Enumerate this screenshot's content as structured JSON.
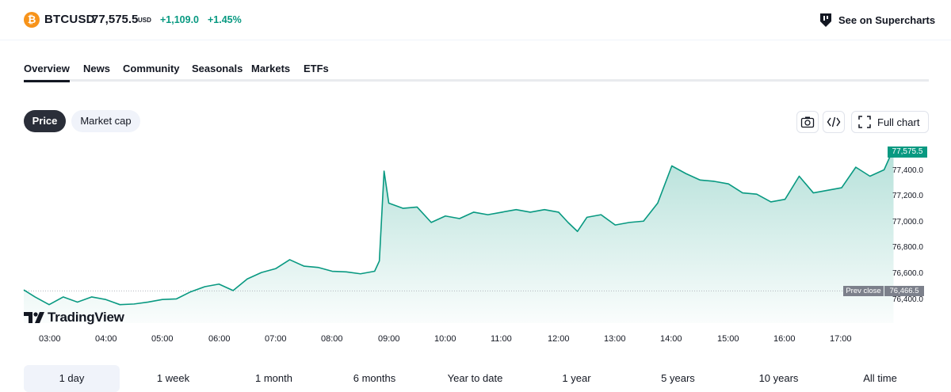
{
  "header": {
    "symbol": "BTCUSD",
    "price": "77,575.5",
    "currency": "USD",
    "change": "+1,109.0",
    "change_percent": "+1.45%",
    "coin_glyph": "₿",
    "supercharts_label": "See on Supercharts",
    "positive_color": "#089981"
  },
  "tabs": [
    "Overview",
    "News",
    "Community",
    "Seasonals",
    "Markets",
    "ETFs"
  ],
  "active_tab": "Overview",
  "chart_toggle": {
    "price_label": "Price",
    "market_cap_label": "Market cap",
    "active": "Price"
  },
  "toolbar": {
    "snapshot_icon": "camera-icon",
    "embed_icon": "code-icon",
    "full_chart_label": "Full chart",
    "full_chart_icon": "expand-icon"
  },
  "branding": {
    "logo_text": "TradingView"
  },
  "chart_data": {
    "type": "area",
    "x_ticks": [
      "03:00",
      "04:00",
      "05:00",
      "06:00",
      "07:00",
      "08:00",
      "09:00",
      "10:00",
      "11:00",
      "12:00",
      "13:00",
      "14:00",
      "15:00",
      "16:00",
      "17:00"
    ],
    "y_ticks": [
      "77,400.0",
      "77,200.0",
      "77,000.0",
      "76,800.0",
      "76,600.0",
      "76,400.0"
    ],
    "ylim": [
      76340,
      77590
    ],
    "last_price_label": "77,575.5",
    "prev_close": 76466.5,
    "prev_close_label": "Prev close",
    "prev_close_value_label": "76,466.5",
    "line_color": "#089981",
    "series": [
      {
        "x": [
          "02:30",
          "02:45",
          "03:00",
          "03:15",
          "03:30",
          "03:45",
          "04:00",
          "04:15",
          "04:30",
          "04:45",
          "05:00",
          "05:15",
          "05:30",
          "05:45",
          "06:00",
          "06:15",
          "06:30",
          "06:45",
          "07:00",
          "07:15",
          "07:30",
          "07:45",
          "08:00",
          "08:15",
          "08:30",
          "08:45",
          "08:50",
          "08:55",
          "09:00",
          "09:15",
          "09:30",
          "09:45",
          "10:00",
          "10:15",
          "10:30",
          "10:45",
          "11:00",
          "11:15",
          "11:30",
          "11:45",
          "12:00",
          "12:10",
          "12:20",
          "12:30",
          "12:45",
          "13:00",
          "13:15",
          "13:30",
          "13:45",
          "14:00",
          "14:15",
          "14:30",
          "14:45",
          "15:00",
          "15:15",
          "15:30",
          "15:45",
          "16:00",
          "16:15",
          "16:30",
          "16:45",
          "17:00",
          "17:15",
          "17:30",
          "17:45",
          "17:55"
        ],
        "y": [
          76475,
          76420,
          76360,
          76420,
          76380,
          76420,
          76400,
          76360,
          76365,
          76380,
          76400,
          76405,
          76460,
          76500,
          76520,
          76470,
          76560,
          76610,
          76640,
          76710,
          76660,
          76650,
          76620,
          76615,
          76600,
          76620,
          76700,
          77400,
          77150,
          77110,
          77120,
          77000,
          77050,
          77030,
          77080,
          77060,
          77080,
          77100,
          77080,
          77100,
          77080,
          77000,
          76930,
          77040,
          77060,
          76980,
          77000,
          77010,
          77150,
          77440,
          77380,
          77330,
          77320,
          77300,
          77230,
          77220,
          77160,
          77180,
          77360,
          77230,
          77250,
          77270,
          77430,
          77360,
          77410,
          77575
        ]
      }
    ]
  },
  "ranges": [
    "1 day",
    "1 week",
    "1 month",
    "6 months",
    "Year to date",
    "1 year",
    "5 years",
    "10 years",
    "All time"
  ],
  "active_range": "1 day"
}
